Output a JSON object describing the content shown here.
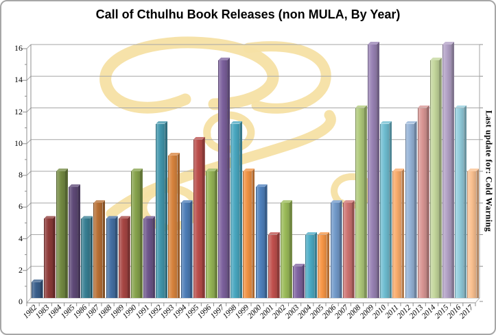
{
  "title": "Call of Cthulhu Book Releases (non MULA, By Year)",
  "side_note": "Last update for: Cold Warning",
  "chart_data": {
    "type": "bar",
    "title": "Call of Cthulhu Book Releases (non MULA, By Year)",
    "categories": [
      "1982",
      "1983",
      "1984",
      "1985",
      "1986",
      "1987",
      "1988",
      "1989",
      "1990",
      "1991",
      "1992",
      "1993",
      "1994",
      "1995",
      "1996",
      "1997",
      "1998",
      "1999",
      "2000",
      "2001",
      "2002",
      "2003",
      "2004",
      "2005",
      "2006",
      "2007",
      "2008",
      "2009",
      "2010",
      "2011",
      "2012",
      "2013",
      "2014",
      "2015",
      "2016",
      "2017"
    ],
    "values": [
      1,
      5,
      8,
      7,
      5,
      6,
      5,
      5,
      8,
      5,
      11,
      9,
      6,
      10,
      8,
      15,
      11,
      8,
      7,
      4,
      6,
      2,
      4,
      4,
      6,
      6,
      12,
      16,
      11,
      8,
      11,
      12,
      15,
      16,
      12,
      8
    ],
    "xlabel": "",
    "ylabel": "",
    "ylim": [
      0,
      16
    ],
    "y_major_step": 2,
    "y_minor_step": 1,
    "grid": true,
    "legend": "none",
    "bar_style": "3d-column",
    "vary_colors_by_point": true,
    "base_palette": [
      "#4F81BD",
      "#C0504D",
      "#9BBB59",
      "#8064A2",
      "#4BACC6",
      "#F79646"
    ],
    "cycle_tints": [
      0.74,
      0.87,
      0.97,
      1.0,
      1.2,
      1.4
    ],
    "axis_color": "#8C8C8C",
    "gridline_color": "#A6A6A6",
    "watermark_color": "#F5E0A4",
    "text_color": "#000000",
    "annotation": "Last update for: Cold Warning"
  }
}
